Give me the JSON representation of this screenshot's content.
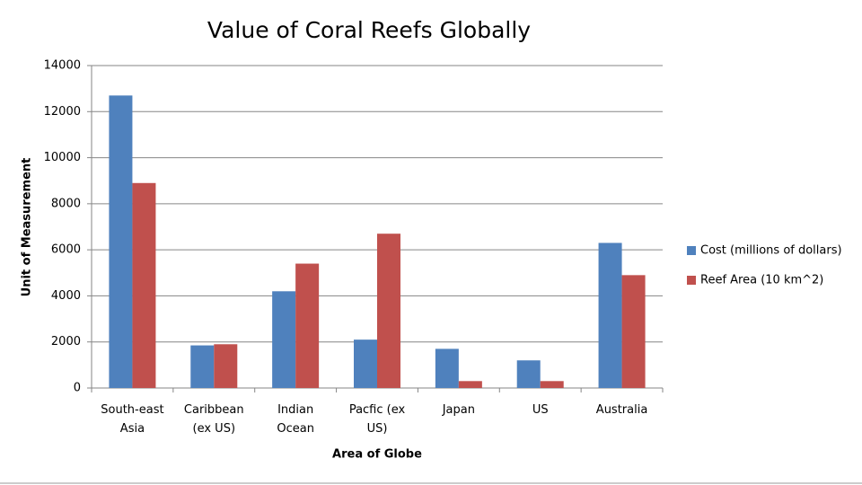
{
  "chart_data": {
    "type": "bar",
    "title": "Value of Coral Reefs Globally",
    "x_label": "Area of Globe",
    "y_label": "Unit of Measurement",
    "categories": [
      "South-east Asia",
      "Caribbean (ex US)",
      "Indian Ocean",
      "Pacfic (ex US)",
      "Japan",
      "US",
      "Australia"
    ],
    "series": [
      {
        "name": "Cost (millions of dollars)",
        "color": "#4f81bd",
        "values": [
          12700,
          1850,
          4200,
          2100,
          1700,
          1200,
          6300
        ]
      },
      {
        "name": "Reef Area (10 km^2)",
        "color": "#c0504d",
        "values": [
          8900,
          1900,
          5400,
          6700,
          300,
          300,
          4900
        ]
      }
    ],
    "ylim": [
      0,
      14000
    ],
    "yticks": [
      0,
      2000,
      4000,
      6000,
      8000,
      10000,
      12000,
      14000
    ],
    "grid": true,
    "legend": "right"
  }
}
